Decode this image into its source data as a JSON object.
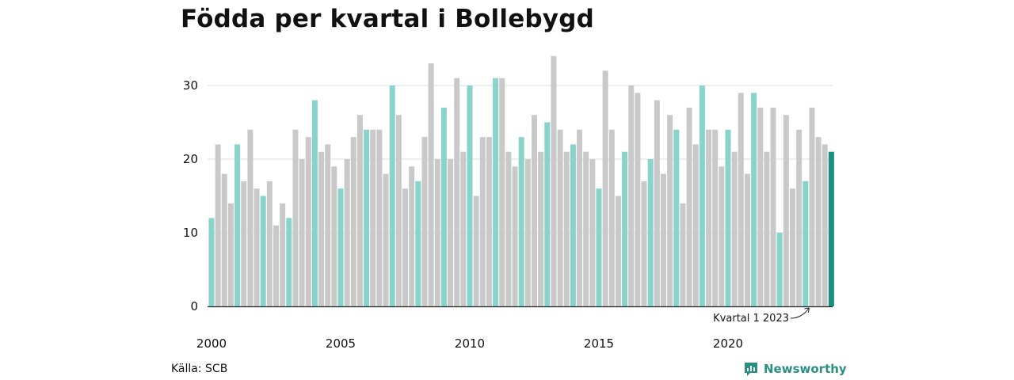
{
  "title": "Födda per kvartal i Bollebygd",
  "source": "Källa: SCB",
  "brand": "Newsworthy",
  "colors": {
    "q1": "#88d4cb",
    "other": "#c9c9c9",
    "highlight": "#1a8f80",
    "grid": "#dddddd",
    "axis": "#222222"
  },
  "chart_data": {
    "type": "bar",
    "ylim": [
      0,
      34
    ],
    "yticks": [
      0,
      10,
      20,
      30
    ],
    "xticks": [
      "2000",
      "2005",
      "2010",
      "2015",
      "2020"
    ],
    "annotation": "Kvartal 1 2023",
    "values": [
      12,
      22,
      18,
      14,
      22,
      17,
      24,
      16,
      15,
      17,
      11,
      14,
      12,
      24,
      20,
      23,
      28,
      21,
      22,
      19,
      16,
      20,
      23,
      26,
      24,
      24,
      24,
      18,
      30,
      26,
      16,
      19,
      17,
      23,
      33,
      20,
      27,
      20,
      31,
      21,
      30,
      15,
      23,
      23,
      31,
      31,
      21,
      19,
      23,
      20,
      26,
      21,
      25,
      34,
      24,
      21,
      22,
      24,
      21,
      20,
      16,
      32,
      24,
      15,
      21,
      30,
      29,
      17,
      20,
      28,
      18,
      26,
      24,
      14,
      27,
      22,
      30,
      24,
      24,
      19,
      24,
      21,
      29,
      18,
      29,
      27,
      21,
      27,
      10,
      26,
      16,
      24,
      17,
      27,
      23,
      22,
      21
    ]
  }
}
